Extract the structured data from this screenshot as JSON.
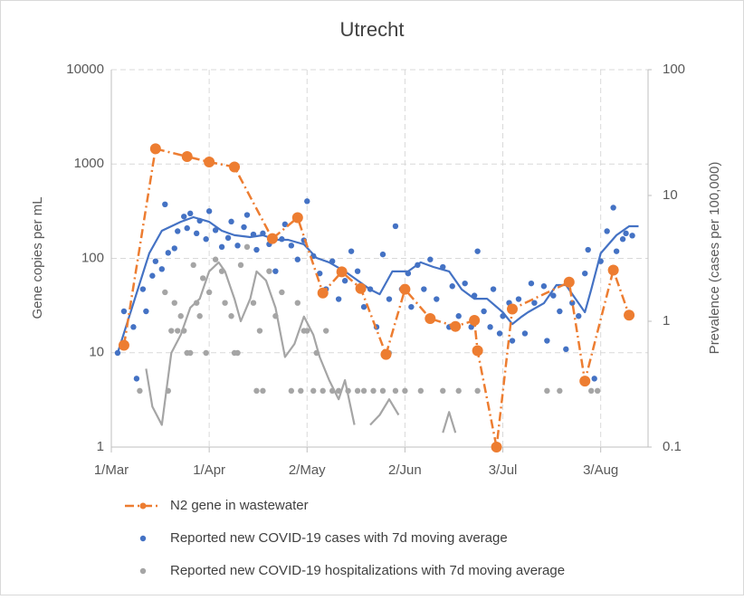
{
  "chart_data": {
    "type": "line",
    "title": "Utrecht",
    "ylabel": "Gene copies per mL",
    "y2label": "Prevalence (cases per 100,000)",
    "log_scale": true,
    "grid": true,
    "legend_position": "bottom",
    "xlim": [
      0,
      170
    ],
    "xticks": [
      {
        "value": 0,
        "label": "1/Mar"
      },
      {
        "value": 31,
        "label": "1/Apr"
      },
      {
        "value": 62,
        "label": "2/May"
      },
      {
        "value": 93,
        "label": "2/Jun"
      },
      {
        "value": 124,
        "label": "3/Jul"
      },
      {
        "value": 155,
        "label": "3/Aug"
      }
    ],
    "ylim": [
      1,
      10000
    ],
    "yticks": [
      1,
      10,
      100,
      1000,
      10000
    ],
    "y2lim": [
      0.1,
      100
    ],
    "y2ticks": [
      0.1,
      1,
      10,
      100
    ],
    "series": [
      {
        "name": "N2 gene in wastewater",
        "color": "#ed7d31",
        "line": true,
        "dashed": true,
        "x": [
          4,
          14,
          24,
          31,
          39,
          51,
          59,
          67,
          73,
          79,
          87,
          93,
          101,
          109,
          115,
          116,
          122,
          127,
          145,
          150,
          159,
          164
        ],
        "values": [
          12,
          1450,
          1200,
          1050,
          930,
          162,
          270,
          43,
          72,
          48,
          9.6,
          47,
          23,
          19,
          22,
          10.5,
          1,
          29,
          56,
          5,
          75,
          25
        ]
      },
      {
        "name": "Reported new COVID-19 cases with 7d moving average",
        "color": "#4472c4",
        "axis": "y2",
        "line": false,
        "x": [
          2,
          4,
          7,
          8,
          10,
          11,
          13,
          14,
          16,
          17,
          18,
          20,
          21,
          23,
          24,
          25,
          27,
          28,
          30,
          31,
          33,
          35,
          37,
          38,
          40,
          42,
          43,
          45,
          46,
          48,
          50,
          52,
          54,
          55,
          57,
          59,
          61,
          62,
          64,
          66,
          68,
          70,
          72,
          74,
          76,
          78,
          80,
          82,
          84,
          86,
          88,
          90,
          92,
          94,
          95,
          97,
          99,
          101,
          103,
          105,
          107,
          108,
          110,
          112,
          114,
          115,
          116,
          118,
          120,
          121,
          123,
          124,
          126,
          127,
          129,
          131,
          133,
          134,
          137,
          138,
          140,
          142,
          144,
          146,
          148,
          150,
          151,
          153,
          155,
          157,
          159,
          160,
          162,
          163,
          165
        ],
        "values": [
          0.56,
          1.2,
          0.9,
          0.35,
          1.8,
          1.2,
          2.3,
          3.0,
          2.6,
          8.5,
          3.5,
          3.8,
          5.2,
          6.8,
          5.5,
          7.2,
          5.0,
          6.3,
          4.5,
          7.5,
          5.3,
          3.9,
          4.6,
          6.2,
          4.0,
          5.6,
          7.0,
          4.9,
          3.7,
          5.0,
          4.1,
          2.5,
          4.5,
          5.9,
          4.0,
          3.1,
          4.4,
          9.0,
          3.3,
          2.4,
          1.8,
          3.0,
          1.5,
          2.1,
          3.6,
          2.5,
          1.3,
          1.8,
          0.9,
          3.4,
          1.5,
          5.7,
          1.8,
          2.4,
          1.3,
          2.8,
          1.8,
          3.1,
          1.5,
          2.7,
          0.9,
          1.9,
          1.1,
          2.0,
          0.9,
          1.6,
          3.6,
          1.2,
          0.9,
          1.8,
          0.8,
          1.1,
          1.4,
          0.7,
          1.5,
          0.8,
          2.0,
          1.4,
          1.9,
          0.7,
          1.6,
          1.2,
          0.6,
          1.4,
          1.1,
          2.4,
          3.7,
          0.35,
          3.0,
          5.2,
          8.0,
          3.6,
          4.5,
          5.0,
          4.8
        ],
        "ma_x": [
          2,
          12,
          16,
          22,
          26,
          31,
          35,
          39,
          44,
          48,
          52,
          56,
          61,
          65,
          69,
          74,
          78,
          82,
          85,
          89,
          94,
          98,
          102,
          107,
          111,
          115,
          119,
          124,
          127,
          130,
          132,
          137,
          141,
          144,
          147,
          150,
          152,
          155,
          160,
          164,
          167
        ],
        "ma_values": [
          0.56,
          3.47,
          5.24,
          6.18,
          6.72,
          6.18,
          5.24,
          4.83,
          4.67,
          4.83,
          4.44,
          4.44,
          4.09,
          3.19,
          2.94,
          2.49,
          2.11,
          1.79,
          1.64,
          2.49,
          2.49,
          2.94,
          2.7,
          2.49,
          1.79,
          1.51,
          1.51,
          1.18,
          0.95,
          1.09,
          1.18,
          1.39,
          1.94,
          1.94,
          1.51,
          1.18,
          1.79,
          3.47,
          4.83,
          5.69,
          5.69
        ]
      },
      {
        "name": "Reported new COVID-19 hospitalizations with 7d moving average",
        "color": "#a5a5a5",
        "axis": "y2",
        "line": false,
        "x": [
          9,
          17,
          18,
          19,
          20,
          21,
          22,
          23,
          24,
          25,
          26,
          27,
          28,
          29,
          30,
          31,
          33,
          35,
          36,
          38,
          39,
          40,
          41,
          43,
          45,
          46,
          47,
          48,
          50,
          52,
          54,
          57,
          59,
          60,
          61,
          62,
          64,
          65,
          67,
          68,
          70,
          72,
          75,
          78,
          80,
          83,
          86,
          88,
          90,
          93,
          98,
          105,
          110,
          116,
          138,
          142,
          152,
          154
        ],
        "values": [
          0.28,
          1.7,
          0.28,
          0.84,
          1.4,
          0.84,
          1.1,
          0.84,
          0.56,
          0.56,
          2.8,
          1.4,
          1.1,
          2.2,
          0.56,
          1.7,
          3.1,
          2.5,
          1.4,
          1.1,
          0.56,
          0.56,
          2.8,
          3.9,
          1.4,
          0.28,
          0.84,
          0.28,
          2.5,
          1.1,
          1.7,
          0.28,
          1.4,
          0.28,
          0.84,
          0.84,
          0.28,
          0.56,
          0.28,
          0.84,
          0.28,
          0.28,
          0.28,
          0.28,
          0.28,
          0.28,
          0.28,
          0.56,
          0.28,
          0.28,
          0.28,
          0.28,
          0.28,
          0.28,
          0.28,
          0.28,
          0.28,
          0.28
        ],
        "ma_x": [
          11,
          13,
          16,
          19,
          22,
          25,
          28,
          31,
          34,
          36,
          39,
          41,
          44,
          46,
          49,
          52,
          55,
          58,
          61,
          64,
          66,
          69,
          72,
          74,
          77,
          80,
          82,
          85,
          88,
          91,
          93,
          105,
          107,
          109,
          111,
          114
        ],
        "ma_values": [
          0.42,
          0.21,
          0.15,
          0.56,
          0.78,
          1.28,
          1.51,
          2.49,
          2.94,
          2.49,
          1.51,
          1.0,
          1.51,
          2.49,
          2.11,
          1.28,
          0.52,
          0.66,
          1.09,
          0.78,
          0.52,
          0.34,
          0.24,
          0.34,
          0.15,
          null,
          0.15,
          0.18,
          0.24,
          0.18,
          null,
          0.13,
          0.19,
          0.13,
          null,
          0.12
        ]
      }
    ]
  }
}
